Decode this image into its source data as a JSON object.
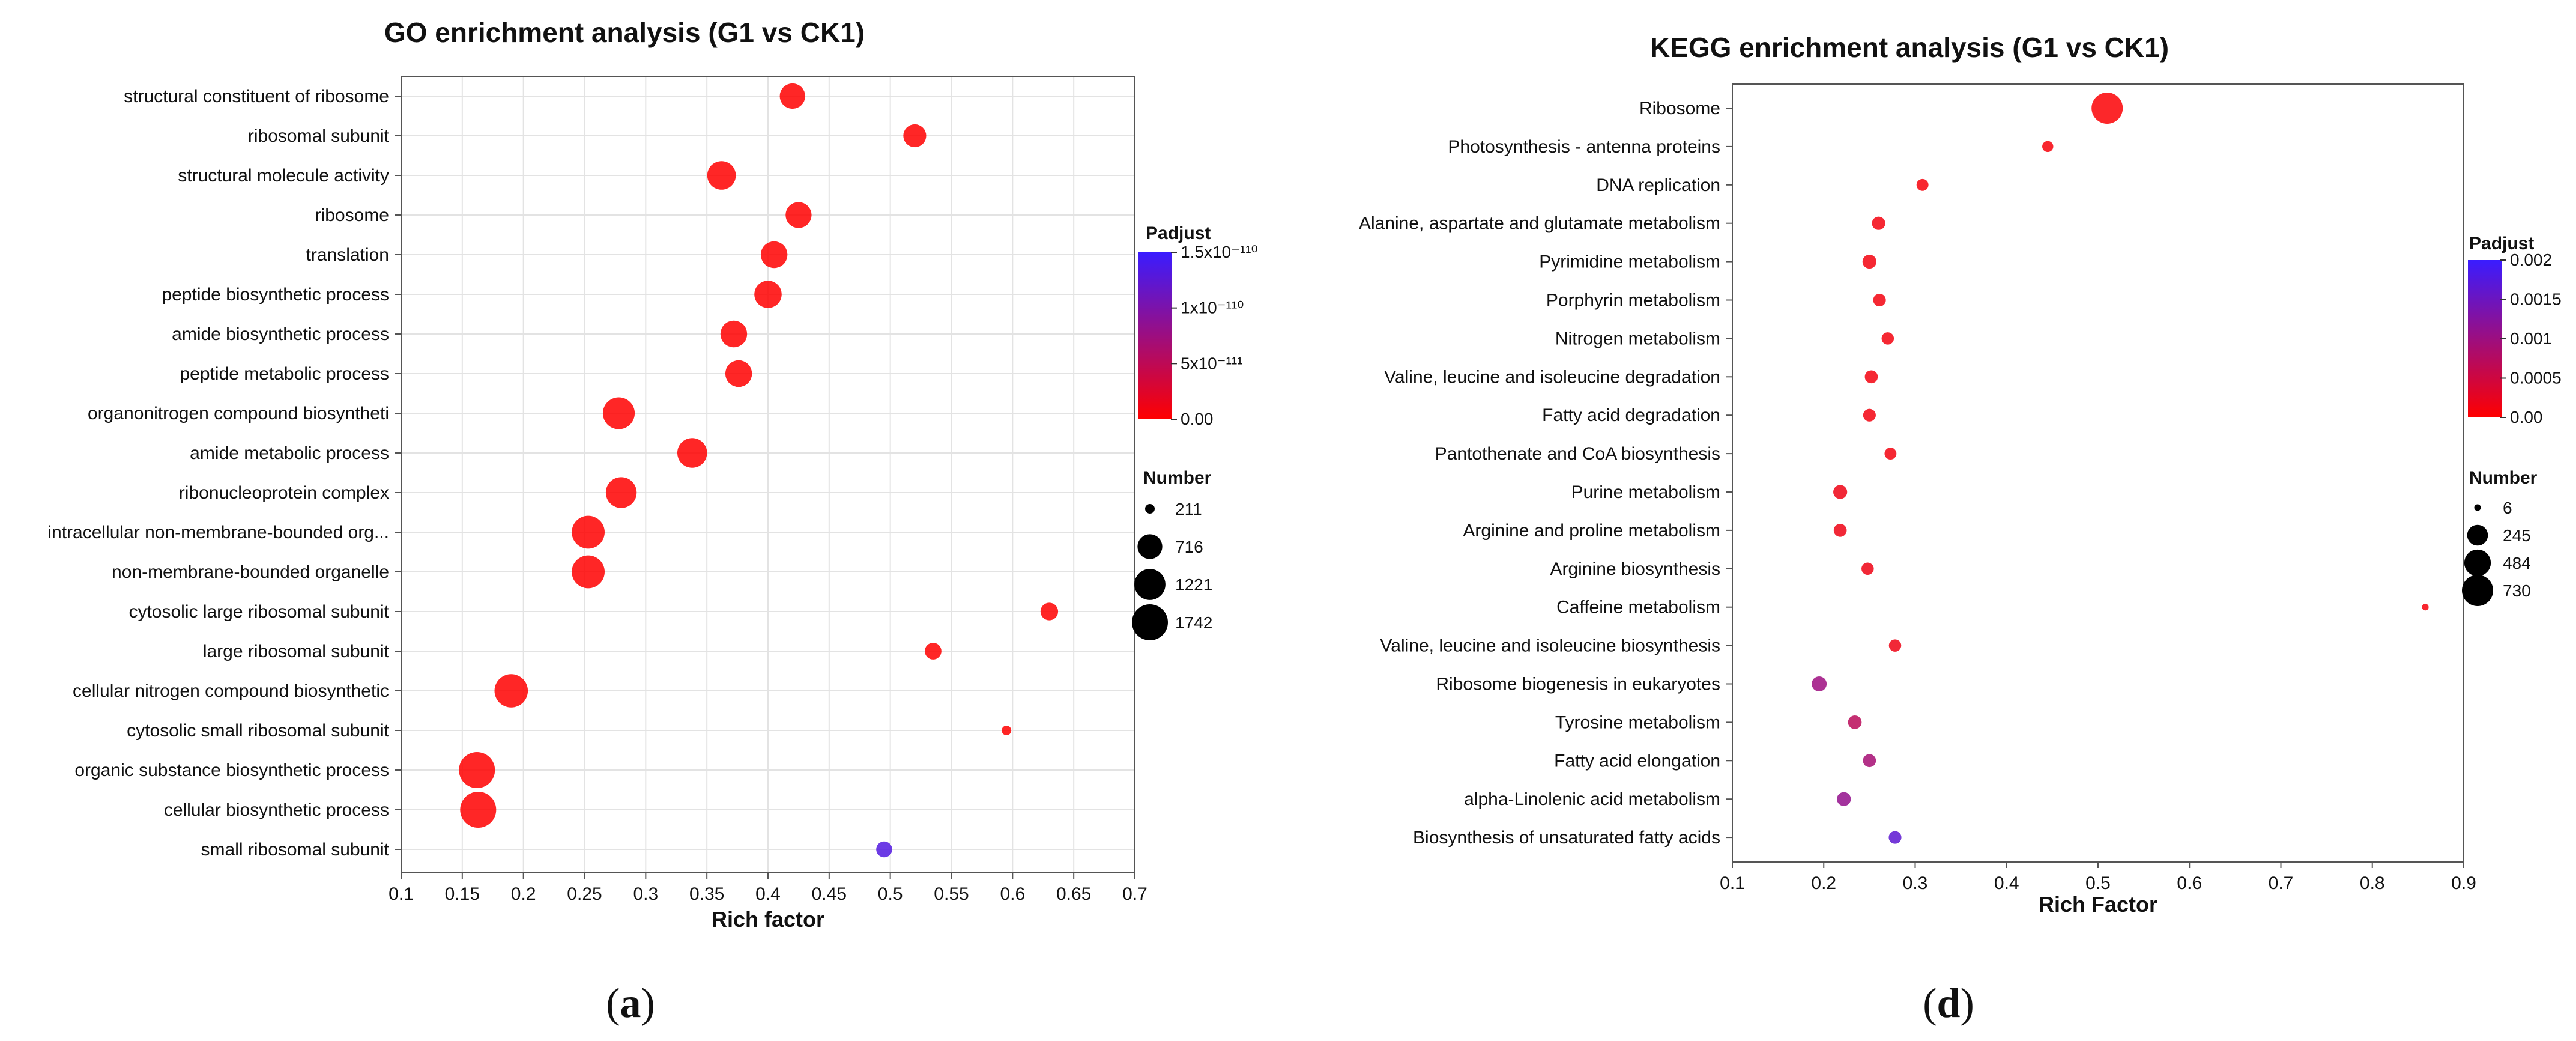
{
  "chart_data": [
    {
      "type": "scatter",
      "title": "GO enrichment analysis (G1 vs CK1)",
      "xlabel": "Rich factor",
      "ylabel": "",
      "xlim": [
        0.1,
        0.7
      ],
      "xticks": [
        "0.1",
        "0.15",
        "0.2",
        "0.25",
        "0.3",
        "0.35",
        "0.4",
        "0.45",
        "0.5",
        "0.55",
        "0.6",
        "0.65",
        "0.7"
      ],
      "grid": true,
      "caption_open": "(",
      "caption_letter": "a",
      "caption_close": ")",
      "categories": [
        "structural constituent of ribosome",
        "ribosomal subunit",
        "structural molecule activity",
        "ribosome",
        "translation",
        "peptide biosynthetic process",
        "amide biosynthetic process",
        "peptide metabolic process",
        "organonitrogen compound biosyntheti",
        "amide metabolic process",
        "ribonucleoprotein complex",
        "intracellular non-membrane-bounded org...",
        "non-membrane-bounded organelle",
        "cytosolic large ribosomal subunit",
        "large ribosomal subunit",
        "cellular nitrogen compound biosynthetic",
        "cytosolic small ribosomal subunit",
        "organic substance biosynthetic process",
        "cellular biosynthetic process",
        "small ribosomal subunit"
      ],
      "rich_factor": [
        0.42,
        0.52,
        0.362,
        0.425,
        0.405,
        0.4,
        0.372,
        0.376,
        0.278,
        0.338,
        0.28,
        0.253,
        0.253,
        0.63,
        0.535,
        0.19,
        0.595,
        0.162,
        0.163,
        0.495
      ],
      "number": [
        760,
        600,
        1000,
        800,
        850,
        900,
        850,
        850,
        1300,
        1100,
        1200,
        1400,
        1400,
        350,
        320,
        1450,
        211,
        1742,
        1742,
        300
      ],
      "padjust_frac": [
        0,
        0,
        0,
        0,
        0,
        0,
        0,
        0,
        0,
        0,
        0,
        0,
        0,
        0,
        0,
        0,
        0,
        0,
        0,
        0.88
      ],
      "legend": {
        "padjust_title": "Padjust",
        "padjust_labels": [
          "1.5x10⁻¹¹⁰",
          "1x10⁻¹¹⁰",
          "5x10⁻¹¹¹",
          "0.00"
        ],
        "number_title": "Number",
        "number_labels": [
          "211",
          "716",
          "1221",
          "1742"
        ],
        "number_values": [
          211,
          716,
          1221,
          1742
        ]
      },
      "colors": {
        "low": "#ff0000",
        "high": "#3a1cff"
      }
    },
    {
      "type": "scatter",
      "title": "KEGG enrichment analysis (G1 vs CK1)",
      "xlabel": "Rich Factor",
      "ylabel": "",
      "xlim": [
        0.1,
        0.9
      ],
      "xticks": [
        "0.1",
        "0.2",
        "0.3",
        "0.4",
        "0.5",
        "0.6",
        "0.7",
        "0.8",
        "0.9"
      ],
      "grid": false,
      "caption_open": "(",
      "caption_letter": "d",
      "caption_close": ")",
      "categories": [
        "Ribosome",
        "Photosynthesis - antenna proteins",
        "DNA replication",
        "Alanine, aspartate and glutamate metabolism",
        "Pyrimidine metabolism",
        "Porphyrin metabolism",
        "Nitrogen metabolism",
        "Valine, leucine and isoleucine degradation",
        "Fatty acid degradation",
        "Pantothenate and CoA biosynthesis",
        "Purine metabolism",
        "Arginine and proline metabolism",
        "Arginine biosynthesis",
        "Caffeine metabolism",
        "Valine, leucine and isoleucine biosynthesis",
        "Ribosome biogenesis in eukaryotes",
        "Tyrosine metabolism",
        "Fatty acid elongation",
        "alpha-Linolenic acid metabolism",
        "Biosynthesis of unsaturated fatty acids"
      ],
      "rich_factor": [
        0.51,
        0.445,
        0.308,
        0.26,
        0.25,
        0.261,
        0.27,
        0.252,
        0.25,
        0.273,
        0.218,
        0.218,
        0.248,
        0.858,
        0.278,
        0.195,
        0.234,
        0.25,
        0.222,
        0.278
      ],
      "number": [
        730,
        30,
        40,
        60,
        70,
        50,
        45,
        55,
        50,
        40,
        70,
        55,
        45,
        6,
        45,
        90,
        65,
        55,
        70,
        50
      ],
      "padjust_frac": [
        0.02,
        0.04,
        0.04,
        0.06,
        0.06,
        0.06,
        0.06,
        0.06,
        0.06,
        0.06,
        0.08,
        0.08,
        0.08,
        0.04,
        0.08,
        0.5,
        0.35,
        0.45,
        0.55,
        0.82
      ],
      "legend": {
        "padjust_title": "Padjust",
        "padjust_labels": [
          "0.002",
          "0.0015",
          "0.001",
          "0.0005",
          "0.00"
        ],
        "number_title": "Number",
        "number_labels": [
          "6",
          "245",
          "484",
          "730"
        ],
        "number_values": [
          6,
          245,
          484,
          730
        ]
      },
      "colors": {
        "low": "#ff0000",
        "high": "#3a1cff"
      }
    }
  ]
}
